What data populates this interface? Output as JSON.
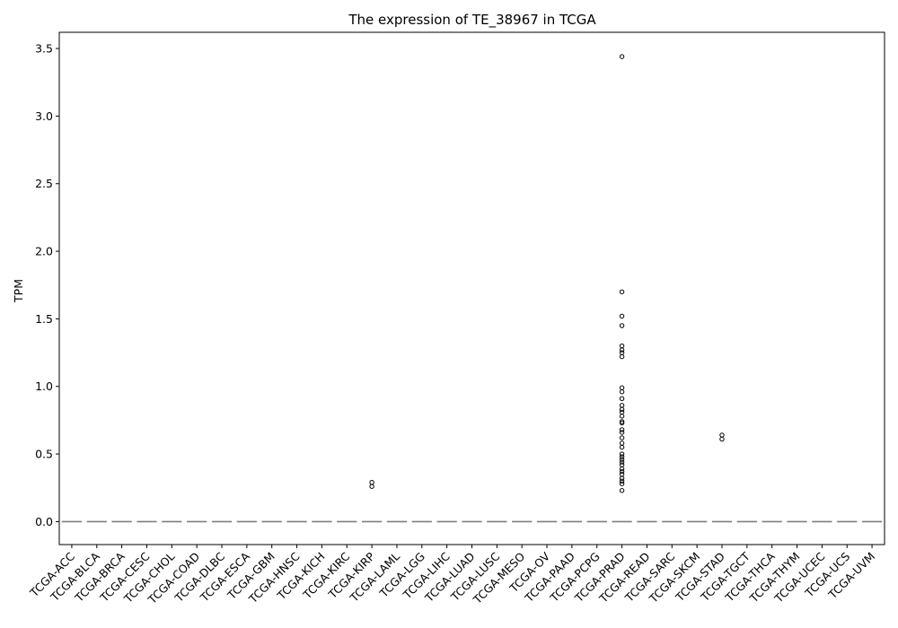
{
  "chart_data": {
    "type": "box",
    "title": "The expression of TE_38967 in TCGA",
    "xlabel": "",
    "ylabel": "TPM",
    "ylim": [
      -0.17,
      3.62
    ],
    "yticks": [
      "0.0",
      "0.5",
      "1.0",
      "1.5",
      "2.0",
      "2.5",
      "3.0",
      "3.5"
    ],
    "categories": [
      "TCGA-ACC",
      "TCGA-BLCA",
      "TCGA-BRCA",
      "TCGA-CESC",
      "TCGA-CHOL",
      "TCGA-COAD",
      "TCGA-DLBC",
      "TCGA-ESCA",
      "TCGA-GBM",
      "TCGA-HNSC",
      "TCGA-KICH",
      "TCGA-KIRC",
      "TCGA-KIRP",
      "TCGA-LAML",
      "TCGA-LGG",
      "TCGA-LIHC",
      "TCGA-LUAD",
      "TCGA-LUSC",
      "TCGA-MESO",
      "TCGA-OV",
      "TCGA-PAAD",
      "TCGA-PCPG",
      "TCGA-PRAD",
      "TCGA-READ",
      "TCGA-SARC",
      "TCGA-SKCM",
      "TCGA-STAD",
      "TCGA-TGCT",
      "TCGA-THCA",
      "TCGA-THYM",
      "TCGA-UCEC",
      "TCGA-UCS",
      "TCGA-UVM"
    ],
    "median": 0,
    "outliers": {
      "TCGA-KIRP": [
        0.26,
        0.29
      ],
      "TCGA-PRAD": [
        3.44,
        1.7,
        1.52,
        1.45,
        1.3,
        1.27,
        1.25,
        1.22,
        0.99,
        0.96,
        0.91,
        0.86,
        0.83,
        0.81,
        0.78,
        0.74,
        0.73,
        0.68,
        0.66,
        0.62,
        0.58,
        0.55,
        0.5,
        0.48,
        0.46,
        0.44,
        0.42,
        0.39,
        0.37,
        0.35,
        0.32,
        0.3,
        0.28,
        0.23
      ],
      "TCGA-STAD": [
        0.61,
        0.64
      ]
    },
    "colors": {
      "median": "#7f7f7f",
      "marker": "#000000"
    }
  }
}
